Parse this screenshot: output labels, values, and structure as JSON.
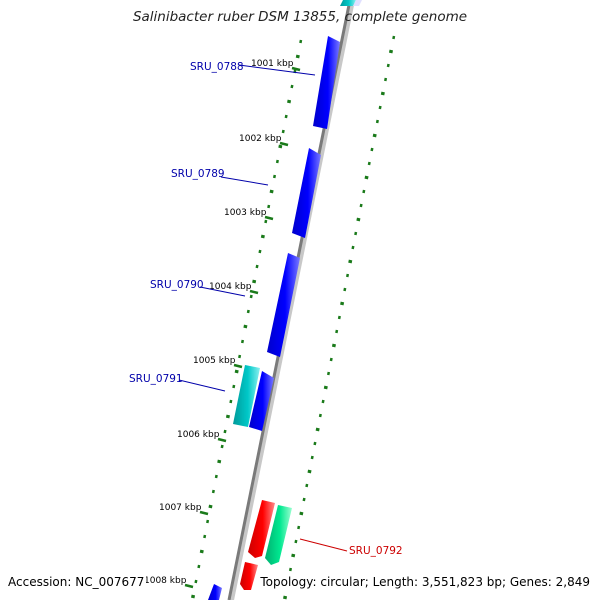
{
  "title": "Salinibacter ruber DSM 13855, complete genome",
  "footer": {
    "accession": "Accession: NC_007677",
    "topology": "Topology: circular; Length: 3,551,823 bp; Genes: 2,849"
  },
  "ticks": [
    "1001 kbp",
    "1002 kbp",
    "1003 kbp",
    "1004 kbp",
    "1005 kbp",
    "1006 kbp",
    "1007 kbp",
    "1008 kbp"
  ],
  "gene_labels": [
    {
      "name": "SRU_0788",
      "color": "#0000aa"
    },
    {
      "name": "SRU_0789",
      "color": "#0000aa"
    },
    {
      "name": "SRU_0790",
      "color": "#0000aa"
    },
    {
      "name": "SRU_0791",
      "color": "#0000aa"
    },
    {
      "name": "SRU_0792",
      "color": "#cc0000"
    }
  ],
  "colors": {
    "forward_gene": "#0000ff",
    "forward_gene_alt": "#00c0c0",
    "reverse_gene": "#ff0000",
    "reverse_gene_alt": "#00e08a",
    "backbone": "#8a8a8a",
    "tick": "#1a7a1a"
  }
}
